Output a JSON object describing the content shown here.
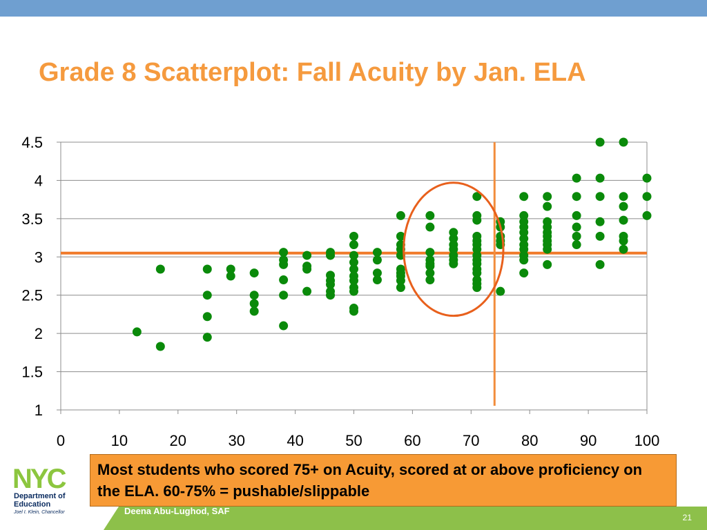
{
  "slide": {
    "title": "Grade 8 Scatterplot: Fall Acuity by Jan. ELA",
    "callout": "Most students who scored 75+ on Acuity, scored at or above proficiency on the ELA. 60-75% = pushable/slippable",
    "author": "Deena Abu-Lughod, SAF",
    "page_number": "21",
    "logo": {
      "mark": "NYC",
      "department": "Department of Education",
      "chancellor": "Joel I. Klein, Chancellor"
    }
  },
  "colors": {
    "title": "#f59a3e",
    "points": "#0a8a0a",
    "reference_lines": "#f07a2a",
    "highlight_ellipse": "#e8601c",
    "callout_bg": "#f79a35",
    "top_bar": "#6f9fd0",
    "footer": "#8dc04a"
  },
  "chart_data": {
    "type": "scatter",
    "title": "",
    "xlabel": "",
    "ylabel": "",
    "xlim": [
      0,
      100
    ],
    "ylim": [
      1,
      4.5
    ],
    "x_ticks": [
      "0",
      "10",
      "20",
      "30",
      "40",
      "50",
      "60",
      "70",
      "80",
      "90",
      "100"
    ],
    "y_ticks": [
      "1",
      "1.5",
      "2",
      "2.5",
      "3",
      "3.5",
      "4",
      "4.5"
    ],
    "grid": "horizontal",
    "reference_lines": {
      "horizontal_y": 3.05,
      "vertical_x": 74
    },
    "highlight_ellipse": {
      "center": [
        67,
        3.1
      ],
      "radius_x": 8.5,
      "radius_y": 0.87
    },
    "points": [
      [
        13,
        2.02
      ],
      [
        17,
        2.84
      ],
      [
        17,
        1.83
      ],
      [
        25,
        2.84
      ],
      [
        25,
        2.5
      ],
      [
        25,
        2.22
      ],
      [
        25,
        1.95
      ],
      [
        29,
        2.84
      ],
      [
        29,
        2.75
      ],
      [
        33,
        2.79
      ],
      [
        33,
        2.5
      ],
      [
        33,
        2.39
      ],
      [
        33,
        2.29
      ],
      [
        38,
        3.06
      ],
      [
        38,
        2.96
      ],
      [
        38,
        2.9
      ],
      [
        38,
        2.7
      ],
      [
        38,
        2.5
      ],
      [
        38,
        2.1
      ],
      [
        42,
        3.02
      ],
      [
        42,
        2.88
      ],
      [
        42,
        2.84
      ],
      [
        42,
        2.55
      ],
      [
        46,
        3.06
      ],
      [
        46,
        3.02
      ],
      [
        46,
        2.76
      ],
      [
        46,
        2.69
      ],
      [
        46,
        2.64
      ],
      [
        46,
        2.55
      ],
      [
        46,
        2.5
      ],
      [
        50,
        3.27
      ],
      [
        50,
        3.16
      ],
      [
        50,
        3.02
      ],
      [
        50,
        2.93
      ],
      [
        50,
        2.84
      ],
      [
        50,
        2.75
      ],
      [
        50,
        2.69
      ],
      [
        50,
        2.6
      ],
      [
        50,
        2.55
      ],
      [
        50,
        2.33
      ],
      [
        50,
        2.29
      ],
      [
        54,
        3.06
      ],
      [
        54,
        2.96
      ],
      [
        54,
        2.79
      ],
      [
        54,
        2.7
      ],
      [
        58,
        3.54
      ],
      [
        58,
        3.27
      ],
      [
        58,
        3.16
      ],
      [
        58,
        3.1
      ],
      [
        58,
        3.02
      ],
      [
        58,
        2.84
      ],
      [
        58,
        2.79
      ],
      [
        58,
        2.75
      ],
      [
        58,
        2.69
      ],
      [
        58,
        2.6
      ],
      [
        63,
        3.54
      ],
      [
        63,
        3.39
      ],
      [
        63,
        3.06
      ],
      [
        63,
        2.96
      ],
      [
        63,
        2.91
      ],
      [
        63,
        2.88
      ],
      [
        63,
        2.79
      ],
      [
        63,
        2.7
      ],
      [
        67,
        3.32
      ],
      [
        67,
        3.24
      ],
      [
        67,
        3.16
      ],
      [
        67,
        3.1
      ],
      [
        67,
        3.02
      ],
      [
        67,
        2.96
      ],
      [
        67,
        2.91
      ],
      [
        71,
        3.79
      ],
      [
        71,
        3.54
      ],
      [
        71,
        3.48
      ],
      [
        71,
        3.27
      ],
      [
        71,
        3.21
      ],
      [
        71,
        3.16
      ],
      [
        71,
        3.1
      ],
      [
        71,
        3.02
      ],
      [
        71,
        2.96
      ],
      [
        71,
        2.91
      ],
      [
        71,
        2.84
      ],
      [
        71,
        2.79
      ],
      [
        71,
        2.7
      ],
      [
        71,
        2.65
      ],
      [
        71,
        2.6
      ],
      [
        75,
        3.46
      ],
      [
        75,
        3.39
      ],
      [
        75,
        3.27
      ],
      [
        75,
        3.21
      ],
      [
        75,
        3.16
      ],
      [
        75,
        2.55
      ],
      [
        79,
        3.79
      ],
      [
        79,
        3.54
      ],
      [
        79,
        3.46
      ],
      [
        79,
        3.39
      ],
      [
        79,
        3.32
      ],
      [
        79,
        3.24
      ],
      [
        79,
        3.16
      ],
      [
        79,
        3.1
      ],
      [
        79,
        3.02
      ],
      [
        79,
        2.96
      ],
      [
        79,
        2.79
      ],
      [
        83,
        3.79
      ],
      [
        83,
        3.66
      ],
      [
        83,
        3.46
      ],
      [
        83,
        3.39
      ],
      [
        83,
        3.32
      ],
      [
        83,
        3.27
      ],
      [
        83,
        3.21
      ],
      [
        83,
        3.16
      ],
      [
        83,
        3.1
      ],
      [
        83,
        2.9
      ],
      [
        88,
        4.03
      ],
      [
        88,
        3.79
      ],
      [
        88,
        3.54
      ],
      [
        88,
        3.39
      ],
      [
        88,
        3.27
      ],
      [
        88,
        3.16
      ],
      [
        92,
        4.5
      ],
      [
        92,
        4.03
      ],
      [
        92,
        3.79
      ],
      [
        92,
        3.46
      ],
      [
        92,
        3.27
      ],
      [
        92,
        2.9
      ],
      [
        96,
        4.5
      ],
      [
        96,
        3.79
      ],
      [
        96,
        3.66
      ],
      [
        96,
        3.48
      ],
      [
        96,
        3.27
      ],
      [
        96,
        3.21
      ],
      [
        96,
        3.1
      ],
      [
        100,
        4.03
      ],
      [
        100,
        3.79
      ],
      [
        100,
        3.54
      ]
    ]
  }
}
